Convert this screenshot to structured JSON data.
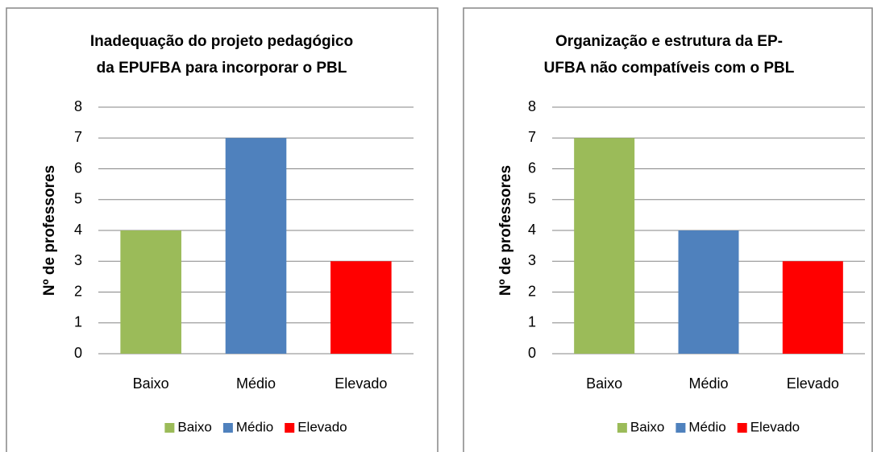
{
  "chart_data": [
    {
      "type": "bar",
      "title": [
        "Inadequação do projeto pedagógico",
        "da EPUFBA para incorporar  o PBL"
      ],
      "y_label": "Nº de professores",
      "categories": [
        "Baixo",
        "Médio",
        "Elevado"
      ],
      "values": [
        4,
        7,
        3
      ],
      "colors": [
        "#9bbb59",
        "#4f81bd",
        "#ff0000"
      ],
      "ylim": [
        0,
        8
      ],
      "yticks": [
        0,
        1,
        2,
        3,
        4,
        5,
        6,
        7,
        8
      ],
      "grid": true,
      "legend": "bottom"
    },
    {
      "type": "bar",
      "title": [
        "Organização e estrutura da EP-",
        "UFBA não compatíveis com o PBL"
      ],
      "y_label": "Nº de professores",
      "categories": [
        "Baixo",
        "Médio",
        "Elevado"
      ],
      "values": [
        7,
        4,
        3
      ],
      "colors": [
        "#9bbb59",
        "#4f81bd",
        "#ff0000"
      ],
      "ylim": [
        0,
        8
      ],
      "yticks": [
        0,
        1,
        2,
        3,
        4,
        5,
        6,
        7,
        8
      ],
      "grid": true,
      "legend": "bottom"
    }
  ]
}
